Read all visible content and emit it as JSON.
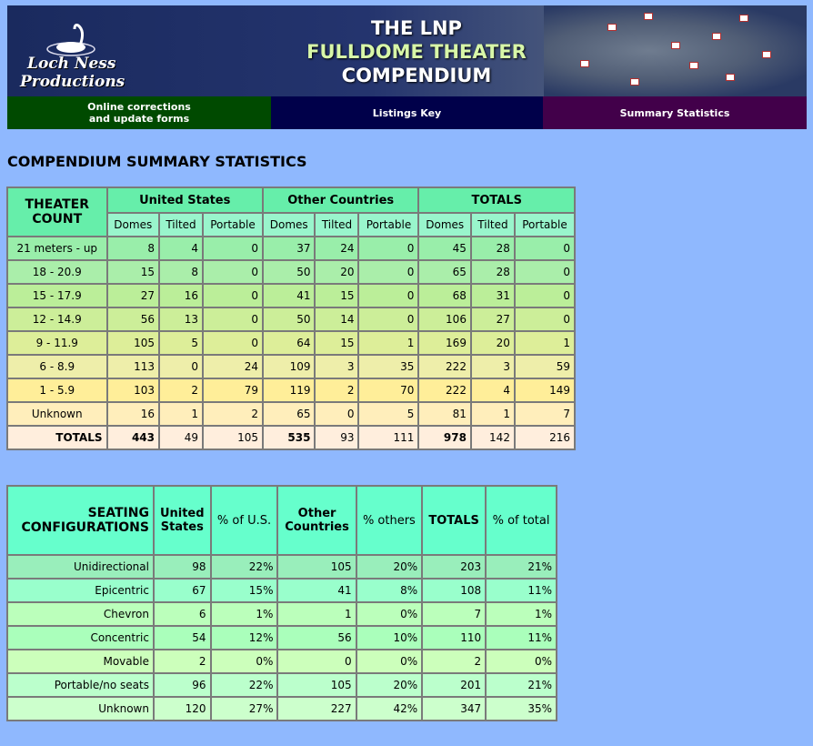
{
  "banner": {
    "logo_line1": "Loch Ness",
    "logo_line2": "Productions",
    "title_line1": "THE LNP",
    "title_line2": "FULLDOME THEATER",
    "title_line3": "COMPENDIUM"
  },
  "nav": {
    "corrections_line1": "Online corrections",
    "corrections_line2": "and update forms",
    "listings": "Listings Key",
    "summary": "Summary Statistics"
  },
  "page_title": "COMPENDIUM SUMMARY STATISTICS",
  "theater_count": {
    "corner_line1": "THEATER",
    "corner_line2": "COUNT",
    "groups": [
      "United States",
      "Other Countries",
      "TOTALS"
    ],
    "sub_headers": [
      "Domes",
      "Tilted",
      "Portable"
    ],
    "rows": [
      {
        "label": "21 meters - up",
        "values": [
          "8",
          "4",
          "0",
          "37",
          "24",
          "0",
          "45",
          "28",
          "0"
        ],
        "color": "#99eeaa"
      },
      {
        "label": "18 - 20.9",
        "values": [
          "15",
          "8",
          "0",
          "50",
          "20",
          "0",
          "65",
          "28",
          "0"
        ],
        "color": "#aaeeaa"
      },
      {
        "label": "15 - 17.9",
        "values": [
          "27",
          "16",
          "0",
          "41",
          "15",
          "0",
          "68",
          "31",
          "0"
        ],
        "color": "#bbee99"
      },
      {
        "label": "12 - 14.9",
        "values": [
          "56",
          "13",
          "0",
          "50",
          "14",
          "0",
          "106",
          "27",
          "0"
        ],
        "color": "#ccee99"
      },
      {
        "label": "9 - 11.9",
        "values": [
          "105",
          "5",
          "0",
          "64",
          "15",
          "1",
          "169",
          "20",
          "1"
        ],
        "color": "#ddee99"
      },
      {
        "label": "6 - 8.9",
        "values": [
          "113",
          "0",
          "24",
          "109",
          "3",
          "35",
          "222",
          "3",
          "59"
        ],
        "color": "#eeeeaa"
      },
      {
        "label": "1 - 5.9",
        "values": [
          "103",
          "2",
          "79",
          "119",
          "2",
          "70",
          "222",
          "4",
          "149"
        ],
        "color": "#ffee99"
      },
      {
        "label": "Unknown",
        "values": [
          "16",
          "1",
          "2",
          "65",
          "0",
          "5",
          "81",
          "1",
          "7"
        ],
        "color": "#ffeebb"
      }
    ],
    "totals": {
      "label": "TOTALS",
      "values": [
        "443",
        "49",
        "105",
        "535",
        "93",
        "111",
        "978",
        "142",
        "216"
      ],
      "color": "#ffeedd"
    }
  },
  "seating": {
    "corner_line1": "SEATING",
    "corner_line2": "CONFIGURATIONS",
    "headers": [
      {
        "line1": "United",
        "line2": "States",
        "bold": true
      },
      {
        "line1": "% of U.S.",
        "line2": "",
        "bold": false
      },
      {
        "line1": "Other",
        "line2": "Countries",
        "bold": true
      },
      {
        "line1": "% others",
        "line2": "",
        "bold": false
      },
      {
        "line1": "TOTALS",
        "line2": "",
        "bold": true
      },
      {
        "line1": "% of total",
        "line2": "",
        "bold": false
      }
    ],
    "rows": [
      {
        "label": "Unidirectional",
        "values": [
          "98",
          "22%",
          "105",
          "20%",
          "203",
          "21%"
        ],
        "color": "#99eebb"
      },
      {
        "label": "Epicentric",
        "values": [
          "67",
          "15%",
          "41",
          "8%",
          "108",
          "11%"
        ],
        "color": "#99ffcc"
      },
      {
        "label": "Chevron",
        "values": [
          "6",
          "1%",
          "1",
          "0%",
          "7",
          "1%"
        ],
        "color": "#bbffbb"
      },
      {
        "label": "Concentric",
        "values": [
          "54",
          "12%",
          "56",
          "10%",
          "110",
          "11%"
        ],
        "color": "#aaffbb"
      },
      {
        "label": "Movable",
        "values": [
          "2",
          "0%",
          "0",
          "0%",
          "2",
          "0%"
        ],
        "color": "#ccffbb"
      },
      {
        "label": "Portable/no seats",
        "values": [
          "96",
          "22%",
          "105",
          "20%",
          "201",
          "21%"
        ],
        "color": "#bbffcc"
      },
      {
        "label": "Unknown",
        "values": [
          "120",
          "27%",
          "227",
          "42%",
          "347",
          "35%"
        ],
        "color": "#ccffcc"
      }
    ]
  }
}
